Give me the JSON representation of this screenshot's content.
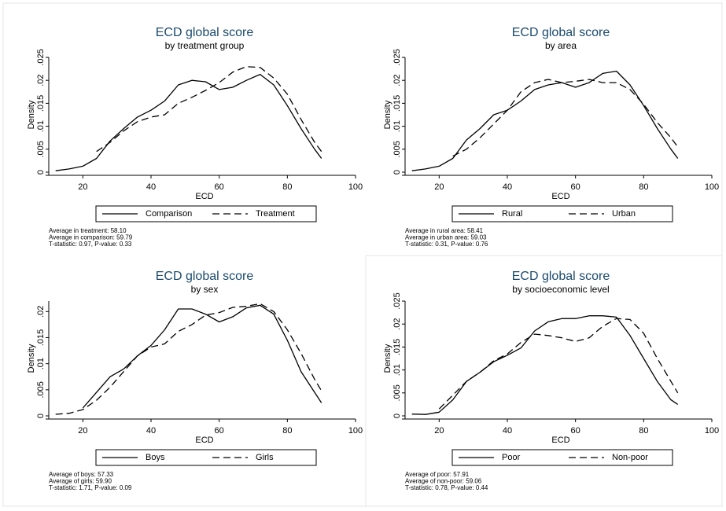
{
  "chart_data": [
    {
      "type": "line",
      "title": "ECD global score",
      "subtitle": "by treatment group",
      "xlabel": "ECD",
      "ylabel": "Density",
      "x": [
        12,
        16,
        20,
        24,
        28,
        32,
        36,
        40,
        44,
        48,
        52,
        56,
        60,
        64,
        68,
        72,
        76,
        80,
        84,
        88,
        90
      ],
      "series": [
        {
          "name": "Comparison",
          "color": "#000000",
          "dash": "solid",
          "values": [
            0.0003,
            0.0007,
            0.0013,
            0.003,
            0.0068,
            0.0095,
            0.012,
            0.0135,
            0.0155,
            0.019,
            0.02,
            0.0197,
            0.018,
            0.0185,
            0.02,
            0.0213,
            0.019,
            0.0145,
            0.0095,
            0.005,
            0.003
          ]
        },
        {
          "name": "Treatment",
          "color": "#000000",
          "dash": "dashed",
          "values": [
            null,
            null,
            null,
            0.0045,
            0.0065,
            0.009,
            0.011,
            0.012,
            0.0125,
            0.015,
            0.0163,
            0.0178,
            0.0195,
            0.0218,
            0.023,
            0.0228,
            0.0205,
            0.017,
            0.0115,
            0.0065,
            0.0045
          ]
        }
      ],
      "xlim": [
        10,
        100
      ],
      "xticks": [
        20,
        40,
        60,
        80,
        100
      ],
      "ylim": [
        0,
        0.025
      ],
      "yticks": [
        0,
        {
          "value": 0.005,
          "label": ".005"
        },
        {
          "value": 0.01,
          "label": ".01"
        },
        {
          "value": 0.015,
          "label": ".015"
        },
        {
          "value": 0.02,
          "label": ".02"
        },
        {
          "value": 0.025,
          "label": ".025"
        }
      ],
      "notes": [
        "Average in treatment: 58.10",
        "Average in comparison: 59.79",
        "T-statistic: 0.97, P-value: 0.33"
      ]
    },
    {
      "type": "line",
      "title": "ECD global score",
      "subtitle": "by area",
      "xlabel": "ECD",
      "ylabel": "Density",
      "x": [
        12,
        16,
        20,
        24,
        28,
        32,
        36,
        40,
        44,
        48,
        52,
        56,
        60,
        64,
        68,
        72,
        76,
        80,
        84,
        88,
        90
      ],
      "series": [
        {
          "name": "Rural",
          "color": "#000000",
          "dash": "solid",
          "values": [
            0.0003,
            0.0007,
            0.0013,
            0.003,
            0.007,
            0.0095,
            0.0125,
            0.0135,
            0.0155,
            0.018,
            0.019,
            0.0195,
            0.0185,
            0.0195,
            0.0215,
            0.022,
            0.019,
            0.0145,
            0.0095,
            0.005,
            0.003
          ]
        },
        {
          "name": "Urban",
          "color": "#000000",
          "dash": "dashed",
          "values": [
            null,
            null,
            null,
            0.0035,
            0.005,
            0.0075,
            0.0105,
            0.0135,
            0.0175,
            0.0195,
            0.0202,
            0.0195,
            0.0198,
            0.0202,
            0.0195,
            0.0195,
            0.018,
            0.0148,
            0.0108,
            0.0075,
            0.0055
          ]
        }
      ],
      "xlim": [
        10,
        100
      ],
      "xticks": [
        20,
        40,
        60,
        80,
        100
      ],
      "ylim": [
        0,
        0.025
      ],
      "yticks": [
        0,
        {
          "value": 0.005,
          "label": ".005"
        },
        {
          "value": 0.01,
          "label": ".01"
        },
        {
          "value": 0.015,
          "label": ".015"
        },
        {
          "value": 0.02,
          "label": ".02"
        },
        {
          "value": 0.025,
          "label": ".025"
        }
      ],
      "notes": [
        "Average in rural area: 58.41",
        "Average in urban area: 59.03",
        "T-statistic: 0.31, P-value: 0.76"
      ]
    },
    {
      "type": "line",
      "title": "ECD global score",
      "subtitle": "by sex",
      "xlabel": "ECD",
      "ylabel": "Density",
      "x": [
        12,
        16,
        20,
        24,
        28,
        32,
        36,
        40,
        44,
        48,
        52,
        56,
        60,
        64,
        68,
        72,
        76,
        80,
        84,
        88,
        90
      ],
      "series": [
        {
          "name": "Boys",
          "color": "#000000",
          "dash": "solid",
          "values": [
            null,
            null,
            0.0015,
            0.0045,
            0.0075,
            0.009,
            0.0115,
            0.0135,
            0.0165,
            0.0205,
            0.0205,
            0.0195,
            0.018,
            0.019,
            0.0207,
            0.0212,
            0.0195,
            0.0145,
            0.0085,
            0.0045,
            0.0025
          ]
        },
        {
          "name": "Girls",
          "color": "#000000",
          "dash": "dashed",
          "values": [
            0.0003,
            0.0005,
            0.0012,
            0.003,
            0.0055,
            0.0085,
            0.0115,
            0.0132,
            0.0138,
            0.0162,
            0.0175,
            0.0193,
            0.0198,
            0.0208,
            0.021,
            0.0215,
            0.02,
            0.0165,
            0.012,
            0.007,
            0.0048
          ]
        }
      ],
      "xlim": [
        10,
        100
      ],
      "xticks": [
        20,
        40,
        60,
        80,
        100
      ],
      "ylim": [
        0,
        0.022
      ],
      "yticks": [
        0,
        {
          "value": 0.005,
          "label": ".005"
        },
        {
          "value": 0.01,
          "label": ".01"
        },
        {
          "value": 0.015,
          "label": ".015"
        },
        {
          "value": 0.02,
          "label": ".02"
        }
      ],
      "notes": [
        "Average of boys: 57.33",
        "Average of girls: 59.90",
        "T-statistic: 1.71, P-value: 0.09"
      ]
    },
    {
      "type": "line",
      "title": "ECD global score",
      "subtitle": "by socioeconomic level",
      "xlabel": "ECD",
      "ylabel": "Density",
      "x": [
        12,
        16,
        20,
        24,
        28,
        32,
        36,
        40,
        44,
        48,
        52,
        56,
        60,
        64,
        68,
        72,
        76,
        80,
        84,
        88,
        90
      ],
      "series": [
        {
          "name": "Poor",
          "color": "#000000",
          "dash": "solid",
          "values": [
            0.0004,
            0.0003,
            0.0008,
            0.0035,
            0.0075,
            0.0095,
            0.0118,
            0.0132,
            0.0148,
            0.0185,
            0.0205,
            0.0212,
            0.0212,
            0.0218,
            0.0218,
            0.0215,
            0.0175,
            0.0125,
            0.0075,
            0.0035,
            0.0025
          ]
        },
        {
          "name": "Non-poor",
          "color": "#000000",
          "dash": "dashed",
          "values": [
            null,
            null,
            0.0015,
            0.0045,
            0.0075,
            0.0095,
            0.012,
            0.0135,
            0.016,
            0.0178,
            0.0175,
            0.017,
            0.0162,
            0.017,
            0.0195,
            0.0212,
            0.021,
            0.018,
            0.0125,
            0.0075,
            0.005
          ]
        }
      ],
      "xlim": [
        10,
        100
      ],
      "xticks": [
        20,
        40,
        60,
        80,
        100
      ],
      "ylim": [
        0,
        0.025
      ],
      "yticks": [
        0,
        {
          "value": 0.005,
          "label": ".005"
        },
        {
          "value": 0.01,
          "label": ".01"
        },
        {
          "value": 0.015,
          "label": ".015"
        },
        {
          "value": 0.02,
          "label": ".02"
        },
        {
          "value": 0.025,
          "label": ".025"
        }
      ],
      "notes": [
        "Average of poor: 57.91",
        "Average of non-poor: 59.06",
        "T-statistic: 0.78, P-value: 0.44"
      ]
    }
  ]
}
